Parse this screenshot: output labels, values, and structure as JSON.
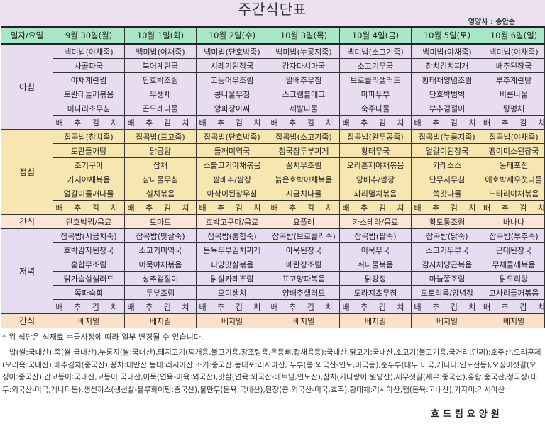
{
  "header": {
    "title": "주간식단표",
    "nutritionist": "영양사 : 송안순"
  },
  "table": {
    "corner_label": "일자/요일",
    "days": [
      "9월 30일(월)",
      "10월 1일(화)",
      "10월 2일(수)",
      "10월 3일(목)",
      "10월 4일(금)",
      "10월 5일(토)",
      "10월 6일(일)"
    ],
    "breakfast": {
      "label": "아침",
      "rows": [
        [
          "백미밥(야채죽)",
          "백미밥(야채죽)",
          "백미밥(단호박죽)",
          "백미밥(누룽지죽)",
          "백미밥(소고기죽)",
          "백미밥(야채죽)",
          "백미밥(야채죽)"
        ],
        [
          "사골파국",
          "북어계란국",
          "시레기된장국",
          "감자다시마국",
          "소고기무국",
          "참치김치찌개",
          "배추된장국"
        ],
        [
          "야채계란찜",
          "단호박조림",
          "고등어무조림",
          "알배추무침",
          "브로콜리샐러드",
          "황태채양념조림",
          "부추계란탕"
        ],
        [
          "토란대들깨볶음",
          "무생채",
          "콩나물무침",
          "스크램블에그",
          "마파두부",
          "단호박범벅",
          "비름나물"
        ],
        [
          "미나리초무침",
          "곤드레나물",
          "양파장아찌",
          "세발나물",
          "숙주나물",
          "부추겉절이",
          "탕평채"
        ],
        [
          "배 추 김 치",
          "배 추 김 치",
          "배 추 김 치",
          "배 추 김 치",
          "배 추 김 치",
          "배 추 김 치",
          "배 추 김 치"
        ]
      ]
    },
    "lunch": {
      "label": "점심",
      "rows": [
        [
          "잡곡밥(참치죽)",
          "잡곡밥(표고죽)",
          "잡곡밥(단호박죽)",
          "잡곡밥(소고기죽)",
          "잡곡밥(완두콩죽)",
          "잡곡밥(누룽지죽)",
          "잡곡밥(야채죽)"
        ],
        [
          "토란들깨탕",
          "닭곰탕",
          "들깨미역국",
          "청국장두부찌게",
          "황태무국",
          "얼갈이된장국",
          "팽이미소된장국"
        ],
        [
          "조기구이",
          "잡채",
          "소불고기야채볶음",
          "꽁치무조림",
          "오리훈제야채볶음",
          "카레소스",
          "동태포전"
        ],
        [
          "가지야채볶음",
          "참나물무침",
          "쌈배추/쌈장",
          "늙은호박야채볶음",
          "양배추/쌈장",
          "단무지무침",
          "애호박새우젓나물"
        ],
        [
          "얼갈이들깨나물",
          "실치볶음",
          "아삭이된장무침",
          "시금치나물",
          "꽈리멸치볶음",
          "쑥갓나물",
          "느타리야채볶음"
        ],
        [
          "배 추 김 치",
          "배 추 김 치",
          "배 추 김 치",
          "배 추 김 치",
          "배 추 김 치",
          "배 추 김 치",
          "배 추 김 치"
        ]
      ]
    },
    "snack1": {
      "label": "간식",
      "items": [
        "단호박찜/음료",
        "토마트",
        "호박고구마/음료",
        "요플레",
        "카스테라/음료",
        "황도통조림",
        "바나나"
      ]
    },
    "dinner": {
      "label": "저녁",
      "rows": [
        [
          "잡곡밥(시금치죽)",
          "잡곡밥(맛살죽)",
          "잡곡밥(홍합죽)",
          "잡곡밥(브로콜리죽)",
          "잡곡밥(팥죽)",
          "잡곡밥(닭죽)",
          "잡곡밥(부추죽)"
        ],
        [
          "호박감자된장국",
          "소고기미역국",
          "돈육두부김치찌개",
          "아욱된장국",
          "어묵무국",
          "소고기두부국",
          "근대된장국"
        ],
        [
          "홍합무조림",
          "어묵야채볶음",
          "피망맛살볶음",
          "메란장조림",
          "취나물볶음",
          "감자채당근볶음",
          "무채들깨볶음"
        ],
        [
          "닭가슴살샐러드",
          "상추겉절이",
          "닭살카레조림",
          "표고양파볶음",
          "닭강정",
          "마늘쫑조림",
          "닭도리탕"
        ],
        [
          "쪽파숙회",
          "두부조림",
          "오이생치",
          "양배추샐러드",
          "도라지초무침",
          "도토리묵/양념장",
          "고사리들깨볶음"
        ],
        [
          "배 추 김 치",
          "배 추 김 치",
          "배 추 김 치",
          "배 추 김 치",
          "배 추 김 치",
          "배 추 김 치",
          "배 추 김 치"
        ]
      ]
    },
    "snack2": {
      "label": "간식",
      "items": [
        "베지밀",
        "베지밀",
        "베지밀",
        "베지밀",
        "베지밀",
        "베지밀",
        "베지밀"
      ]
    }
  },
  "notes": {
    "disclaimer": "* 위 식단은 식재료 수급사정에 따라 일부 변경될 수 있습니다.",
    "origin": "밥(쌀:국내산),죽(쌀:국내산),누룽지(쌀:국내산),돼지고기(찌개용,불고기용,장조림용,돈등뼈,잡채용등):국내산,닭고기:국내산,소고기(불고기용,국거리,민찌):호주산,오리훈제(오리육:국내산),배추김치(중국산),꽁치:대만산,동태:러시아산,조기:중국산,동태포:러시아산, 두부(콩:외국산-인도,미국등),순두부(대두:미국,케나다,인도산등),오징어젓갈(오징어:중국산),간고등어:국내산,고등어:국내산,어묵(연육-어육:외국산),맛살(연육:외국산-베트남,인도산),참치(가다랑어:원양산),새우젓갈(새우:중국산),홍합:중국산,청국장(대두:외국산-미국,캐나다등),생선까스(생선살-블루화이팅:중국산),물만두(돈육:국내산),된장(콩:외국산-미국,호주),황태채:러시아산,햄(돈육:국내산),가자미:러시아산"
  },
  "footer": {
    "organization": "효드림요양원"
  }
}
